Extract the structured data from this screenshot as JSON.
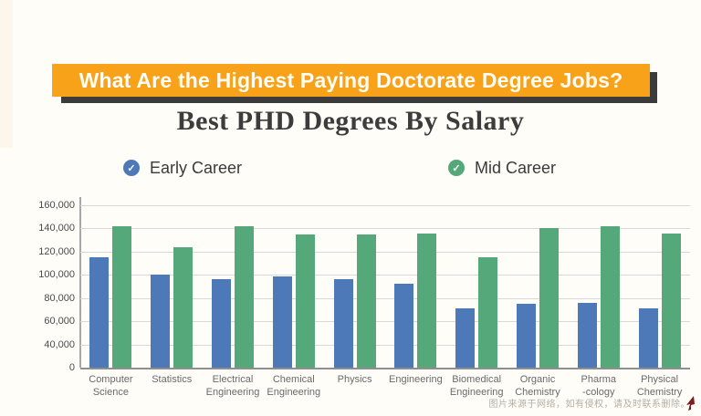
{
  "banner": {
    "title": "What Are the Highest Paying Doctorate Degree Jobs?"
  },
  "title": "Best PHD Degrees By Salary",
  "legend": [
    {
      "label": "Early Career",
      "color": "#4d79b8",
      "marker": "check-circle"
    },
    {
      "label": "Mid Career",
      "color": "#54a87a",
      "marker": "check-circle"
    }
  ],
  "watermark": "图片来源于网络，如有侵权，请及时联系删除。",
  "colors": {
    "banner_orange": "#f7a219",
    "banner_shadow": "#3b3b3b",
    "early_career_blue": "#4d79b8",
    "mid_career_green": "#54a87a",
    "gridline": "#d8d8d8",
    "baseline": "#8f8f8f",
    "background": "#fffdf8"
  },
  "chart_data": {
    "type": "bar",
    "title": "Best PHD Degrees By Salary",
    "xlabel": "",
    "ylabel": "",
    "ylim": [
      0,
      160000
    ],
    "grid": true,
    "legend_position": "top",
    "ytick_labels": [
      "160,000",
      "140,000",
      "120,000",
      "100,000",
      "80,000",
      "60,000",
      "40,000",
      "0"
    ],
    "categories": [
      [
        "Computer",
        "Science"
      ],
      [
        "Statistics"
      ],
      [
        "Electrical",
        "Engineering"
      ],
      [
        "Chemical",
        "Engineering"
      ],
      [
        "Physics"
      ],
      [
        "Engineering"
      ],
      [
        "Biomedical",
        "Engineering"
      ],
      [
        "Organic",
        "Chemistry"
      ],
      [
        "Pharma",
        "-cology"
      ],
      [
        "Physical",
        "Chemistry"
      ]
    ],
    "series": [
      {
        "name": "Early Career",
        "color": "#4d79b8",
        "values": [
          115000,
          100000,
          96000,
          99000,
          96000,
          92000,
          71000,
          75000,
          76000,
          71000
        ]
      },
      {
        "name": "Mid Career",
        "color": "#54a87a",
        "values": [
          142000,
          124000,
          142000,
          135000,
          135000,
          136000,
          115000,
          140000,
          142000,
          136000
        ]
      }
    ]
  }
}
